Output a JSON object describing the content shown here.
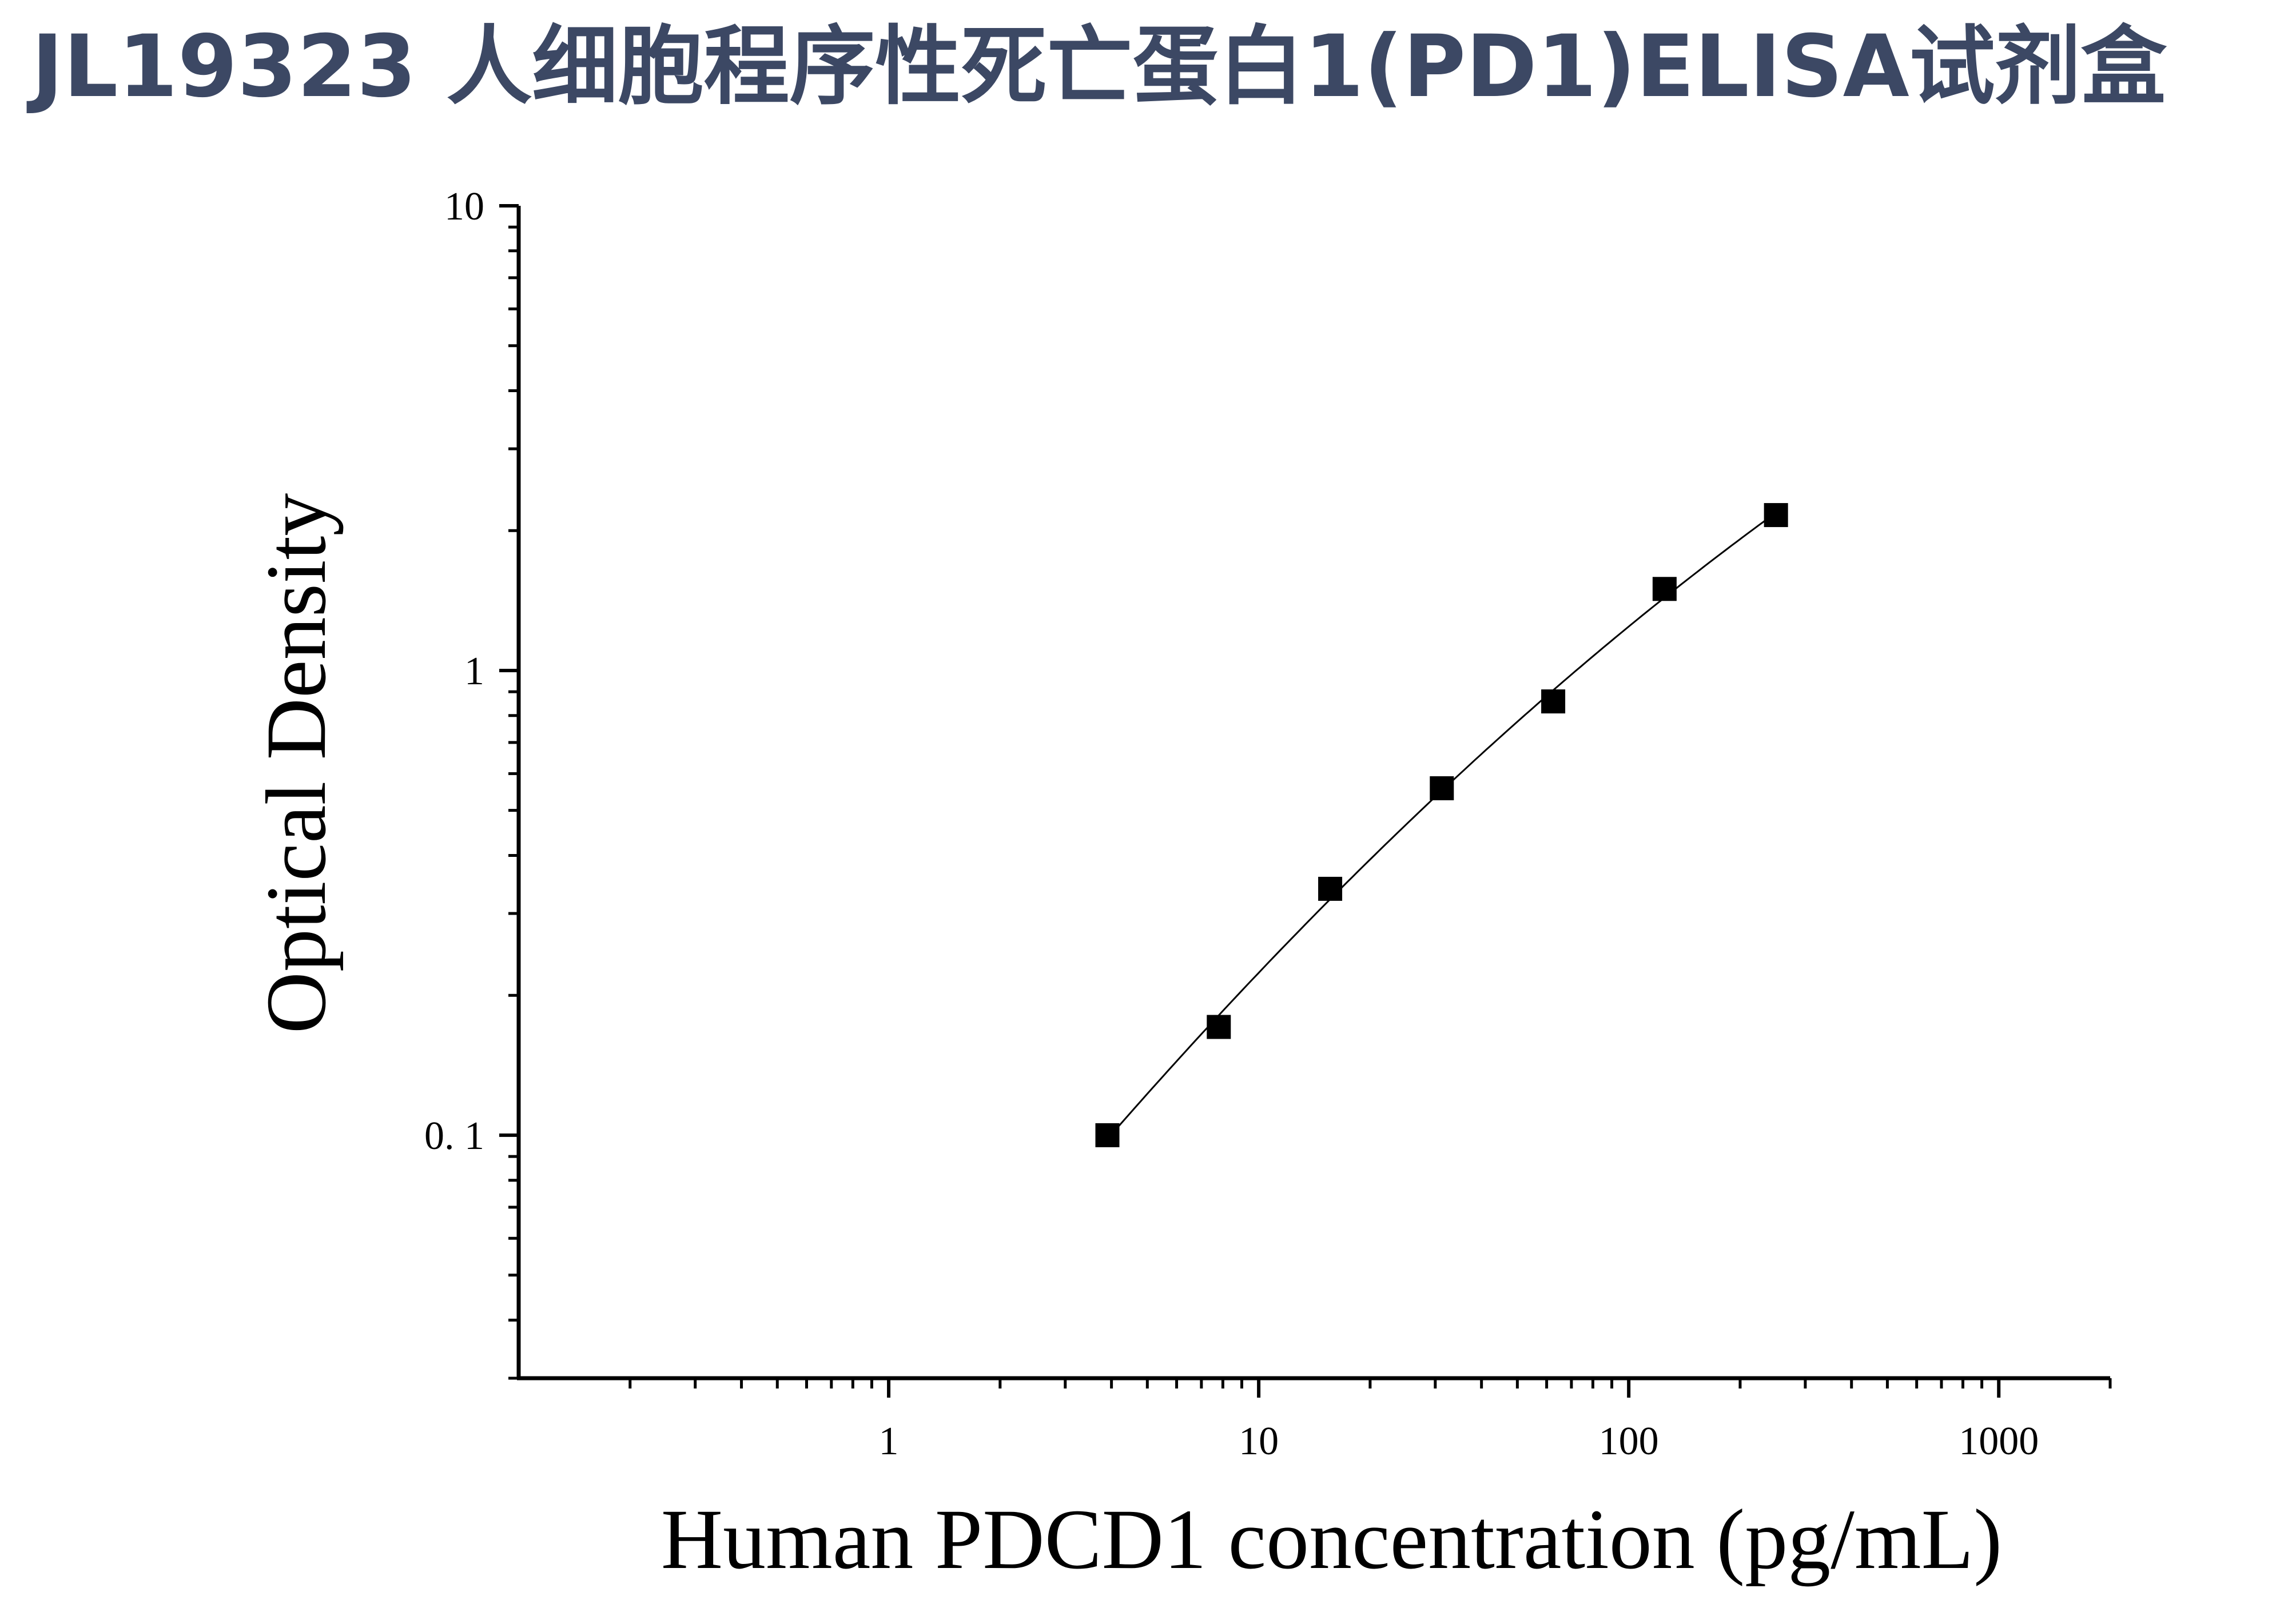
{
  "title": "JL19323 人细胞程序性死亡蛋白1(PD1)ELISA试剂盒",
  "colors": {
    "title": "#3c4864",
    "axis": "#000000",
    "marker": "#000000",
    "curve": "#000000",
    "background": "#ffffff"
  },
  "chart_data": {
    "type": "scatter",
    "xlabel": "Human PDCD1 concentration (pg/mL)",
    "ylabel": "Optical Density",
    "xscale": "log",
    "yscale": "log",
    "xlim": [
      0.1,
      2000
    ],
    "ylim": [
      0.03,
      10
    ],
    "x_ticks": [
      1,
      10,
      100,
      1000
    ],
    "x_tick_labels": [
      "1",
      "10",
      "100",
      "1000"
    ],
    "y_ticks": [
      0.1,
      1,
      10
    ],
    "y_tick_labels": [
      "0. 1",
      "1",
      "10"
    ],
    "grid": false,
    "legend": "none",
    "marker": "square",
    "fit_line": true,
    "series": [
      {
        "x": [
          3.9,
          7.8,
          15.6,
          31.25,
          62.5,
          125,
          250
        ],
        "y": [
          0.1,
          0.171,
          0.339,
          0.558,
          0.858,
          1.498,
          2.16
        ]
      }
    ]
  }
}
